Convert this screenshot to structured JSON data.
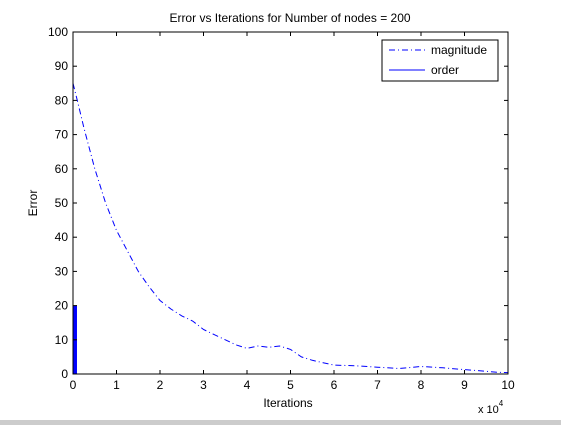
{
  "chart_data": {
    "type": "line",
    "title": "Error vs Iterations for Number of nodes = 200",
    "xlabel": "Iterations",
    "ylabel": "Error",
    "x_exponent_base": "x 10",
    "x_exponent_power": "4",
    "xlim": [
      0,
      10
    ],
    "ylim": [
      0,
      100
    ],
    "x_units": "iterations / 10^4",
    "xticks": [
      0,
      1,
      2,
      3,
      4,
      5,
      6,
      7,
      8,
      9,
      10
    ],
    "yticks": [
      0,
      10,
      20,
      30,
      40,
      50,
      60,
      70,
      80,
      90,
      100
    ],
    "grid": false,
    "legend_position": "top-right",
    "series": [
      {
        "name": "magnitude",
        "style": "dash-dot",
        "color": "#0000ff",
        "x": [
          0,
          0.1,
          0.25,
          0.5,
          0.75,
          1.0,
          1.25,
          1.5,
          1.75,
          2.0,
          2.25,
          2.5,
          2.75,
          3.0,
          3.25,
          3.5,
          3.75,
          4.0,
          4.25,
          4.5,
          4.75,
          5.0,
          5.25,
          5.5,
          5.75,
          6.0,
          6.5,
          7.0,
          7.5,
          8.0,
          8.5,
          9.0,
          9.5,
          9.75,
          10.0
        ],
        "y": [
          85,
          80,
          72,
          60,
          50,
          42,
          36,
          30,
          25.5,
          21.5,
          19,
          17,
          15.5,
          13,
          11.5,
          10,
          8.5,
          7.5,
          8.2,
          7.8,
          8.2,
          7.2,
          5,
          4,
          3.3,
          2.6,
          2.4,
          2.0,
          1.6,
          2.2,
          1.8,
          1.3,
          0.8,
          0.5,
          0.4
        ]
      },
      {
        "name": "order",
        "style": "solid",
        "color": "#0000ff",
        "x": [
          0,
          0.01,
          0.02,
          0.03,
          0.04,
          0.05,
          0.06,
          0.07,
          0.08
        ],
        "y": [
          20,
          20,
          20,
          20,
          20,
          20,
          20,
          20,
          20
        ],
        "baseline": 0
      }
    ]
  }
}
